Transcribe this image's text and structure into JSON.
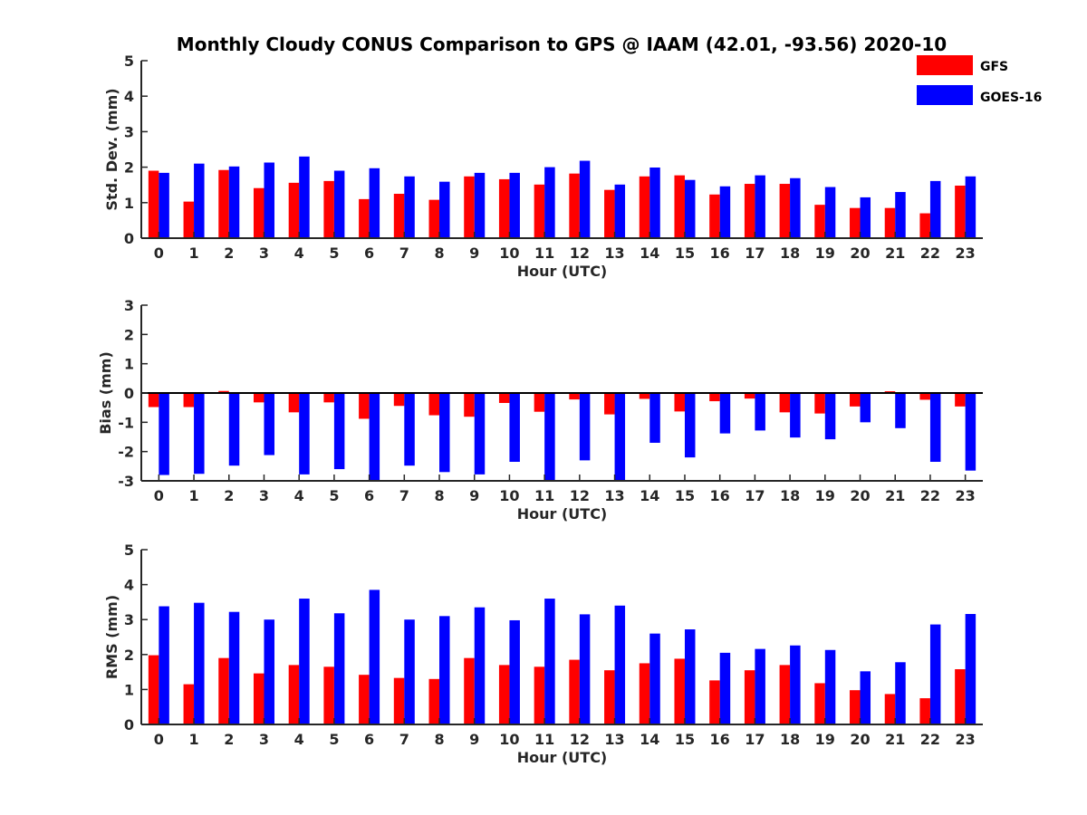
{
  "title": "Monthly Cloudy CONUS Comparison to GPS @ IAAM (42.01, -93.56) 2020-10",
  "legend": [
    {
      "name": "GFS",
      "color": "#ff0000"
    },
    {
      "name": "GOES-16",
      "color": "#0000ff"
    }
  ],
  "chart_data": [
    {
      "type": "bar",
      "categories": [
        "0",
        "1",
        "2",
        "3",
        "4",
        "5",
        "6",
        "7",
        "8",
        "9",
        "10",
        "11",
        "12",
        "13",
        "14",
        "15",
        "16",
        "17",
        "18",
        "19",
        "20",
        "21",
        "22",
        "23"
      ],
      "xlabel": "Hour (UTC)",
      "ylabel": "Std. Dev. (mm)",
      "ylim": [
        0,
        5
      ],
      "yticks": [
        "0",
        "1",
        "2",
        "3",
        "4",
        "5"
      ],
      "series": [
        {
          "name": "GFS",
          "color": "#ff0000",
          "values": [
            1.9,
            1.03,
            1.92,
            1.41,
            1.56,
            1.61,
            1.1,
            1.25,
            1.08,
            1.74,
            1.66,
            1.51,
            1.82,
            1.36,
            1.74,
            1.77,
            1.23,
            1.53,
            1.53,
            0.94,
            0.85,
            0.85,
            0.7,
            1.48
          ]
        },
        {
          "name": "GOES-16",
          "color": "#0000ff",
          "values": [
            1.84,
            2.1,
            2.02,
            2.13,
            2.3,
            1.9,
            1.97,
            1.74,
            1.59,
            1.84,
            1.84,
            2.0,
            2.18,
            1.51,
            1.99,
            1.64,
            1.46,
            1.77,
            1.69,
            1.44,
            1.15,
            1.3,
            1.61,
            1.74
          ]
        }
      ]
    },
    {
      "type": "bar",
      "categories": [
        "0",
        "1",
        "2",
        "3",
        "4",
        "5",
        "6",
        "7",
        "8",
        "9",
        "10",
        "11",
        "12",
        "13",
        "14",
        "15",
        "16",
        "17",
        "18",
        "19",
        "20",
        "21",
        "22",
        "23"
      ],
      "xlabel": "Hour (UTC)",
      "ylabel": "Bias (mm)",
      "ylim": [
        -3,
        3
      ],
      "yticks": [
        "-3",
        "-2",
        "-1",
        "0",
        "1",
        "2",
        "3"
      ],
      "series": [
        {
          "name": "GFS",
          "color": "#ff0000",
          "values": [
            -0.48,
            -0.48,
            0.07,
            -0.32,
            -0.66,
            -0.32,
            -0.88,
            -0.44,
            -0.76,
            -0.81,
            -0.34,
            -0.64,
            -0.22,
            -0.73,
            -0.2,
            -0.63,
            -0.28,
            -0.19,
            -0.66,
            -0.7,
            -0.46,
            0.06,
            -0.23,
            -0.46
          ]
        },
        {
          "name": "GOES-16",
          "color": "#0000ff",
          "values": [
            -2.8,
            -2.76,
            -2.48,
            -2.12,
            -2.78,
            -2.6,
            -3.0,
            -2.48,
            -2.7,
            -2.78,
            -2.35,
            -2.98,
            -2.3,
            -3.0,
            -1.7,
            -2.2,
            -1.38,
            -1.28,
            -1.52,
            -1.58,
            -1.0,
            -1.2,
            -2.35,
            -2.65
          ]
        }
      ]
    },
    {
      "type": "bar",
      "categories": [
        "0",
        "1",
        "2",
        "3",
        "4",
        "5",
        "6",
        "7",
        "8",
        "9",
        "10",
        "11",
        "12",
        "13",
        "14",
        "15",
        "16",
        "17",
        "18",
        "19",
        "20",
        "21",
        "22",
        "23"
      ],
      "xlabel": "Hour (UTC)",
      "ylabel": "RMS (mm)",
      "ylim": [
        0,
        5
      ],
      "yticks": [
        "0",
        "1",
        "2",
        "3",
        "4",
        "5"
      ],
      "series": [
        {
          "name": "GFS",
          "color": "#ff0000",
          "values": [
            1.98,
            1.15,
            1.9,
            1.46,
            1.7,
            1.65,
            1.42,
            1.33,
            1.3,
            1.9,
            1.7,
            1.65,
            1.85,
            1.55,
            1.75,
            1.88,
            1.26,
            1.55,
            1.7,
            1.18,
            0.98,
            0.87,
            0.75,
            1.58
          ]
        },
        {
          "name": "GOES-16",
          "color": "#0000ff",
          "values": [
            3.38,
            3.48,
            3.22,
            3.0,
            3.6,
            3.18,
            3.85,
            3.0,
            3.1,
            3.35,
            2.98,
            3.6,
            3.15,
            3.4,
            2.6,
            2.72,
            2.05,
            2.16,
            2.26,
            2.13,
            1.52,
            1.78,
            2.86,
            3.16
          ]
        }
      ]
    }
  ]
}
